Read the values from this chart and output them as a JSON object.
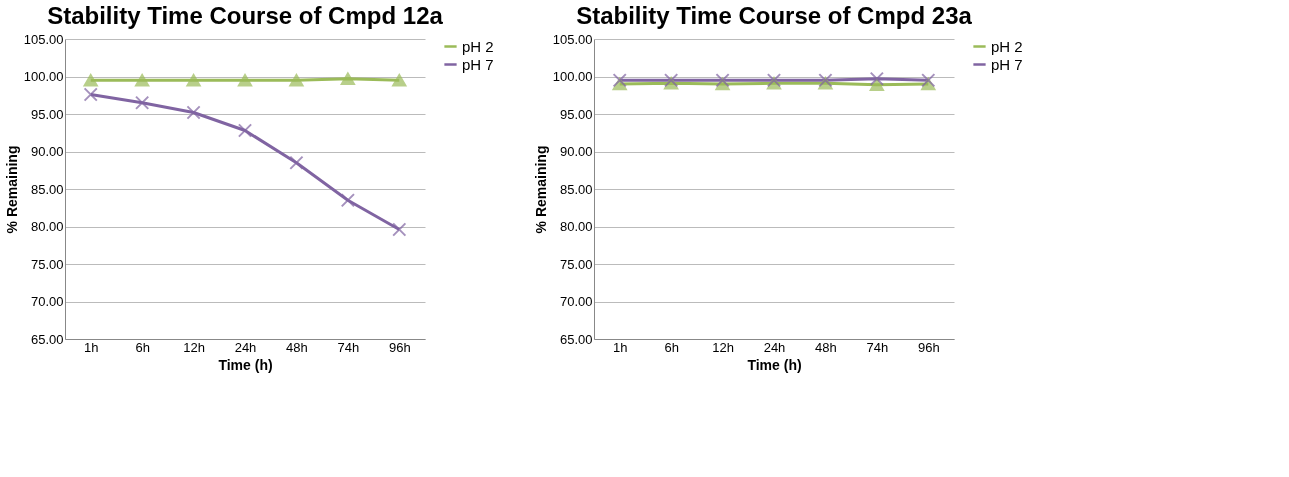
{
  "chart_data": [
    {
      "type": "line",
      "title": "Stability Time Course of Cmpd 12a",
      "xlabel": "Time (h)",
      "ylabel": "% Remaining",
      "categories": [
        "1h",
        "6h",
        "12h",
        "24h",
        "48h",
        "74h",
        "96h"
      ],
      "series": [
        {
          "name": "pH 2",
          "color": "#9bbb59",
          "marker": "triangle",
          "values": [
            99.5,
            99.5,
            99.5,
            99.5,
            99.5,
            99.7,
            99.5
          ]
        },
        {
          "name": "pH 7",
          "color": "#8064a2",
          "marker": "cross",
          "values": [
            97.6,
            96.5,
            95.2,
            92.8,
            88.5,
            83.5,
            79.6
          ]
        }
      ],
      "ylim": [
        65,
        105
      ],
      "yticks": [
        {
          "value": 65,
          "label": "65.00"
        },
        {
          "value": 70,
          "label": "70.00"
        },
        {
          "value": 75,
          "label": "75.00"
        },
        {
          "value": 80,
          "label": "80.00"
        },
        {
          "value": 85,
          "label": "85.00"
        },
        {
          "value": 90,
          "label": "90.00"
        },
        {
          "value": 95,
          "label": "95.00"
        },
        {
          "value": 100,
          "label": "100.00"
        },
        {
          "value": 105,
          "label": "105.00"
        }
      ],
      "grid": "y",
      "legend": "right"
    },
    {
      "type": "line",
      "title": "Stability Time Course of Cmpd 23a",
      "xlabel": "Time (h)",
      "ylabel": "% Remaining",
      "categories": [
        "1h",
        "6h",
        "12h",
        "24h",
        "48h",
        "74h",
        "96h"
      ],
      "series": [
        {
          "name": "pH 2",
          "color": "#9bbb59",
          "marker": "triangle",
          "values": [
            99.0,
            99.1,
            99.0,
            99.1,
            99.1,
            98.9,
            99.0
          ]
        },
        {
          "name": "pH 7",
          "color": "#8064a2",
          "marker": "cross",
          "values": [
            99.5,
            99.5,
            99.5,
            99.5,
            99.5,
            99.7,
            99.5
          ]
        }
      ],
      "ylim": [
        65,
        105
      ],
      "yticks": [
        {
          "value": 65,
          "label": "65.00"
        },
        {
          "value": 70,
          "label": "70.00"
        },
        {
          "value": 75,
          "label": "75.00"
        },
        {
          "value": 80,
          "label": "80.00"
        },
        {
          "value": 85,
          "label": "85.00"
        },
        {
          "value": 90,
          "label": "90.00"
        },
        {
          "value": 95,
          "label": "95.00"
        },
        {
          "value": 100,
          "label": "100.00"
        },
        {
          "value": 105,
          "label": "105.00"
        }
      ],
      "grid": "y",
      "legend": "right"
    }
  ]
}
